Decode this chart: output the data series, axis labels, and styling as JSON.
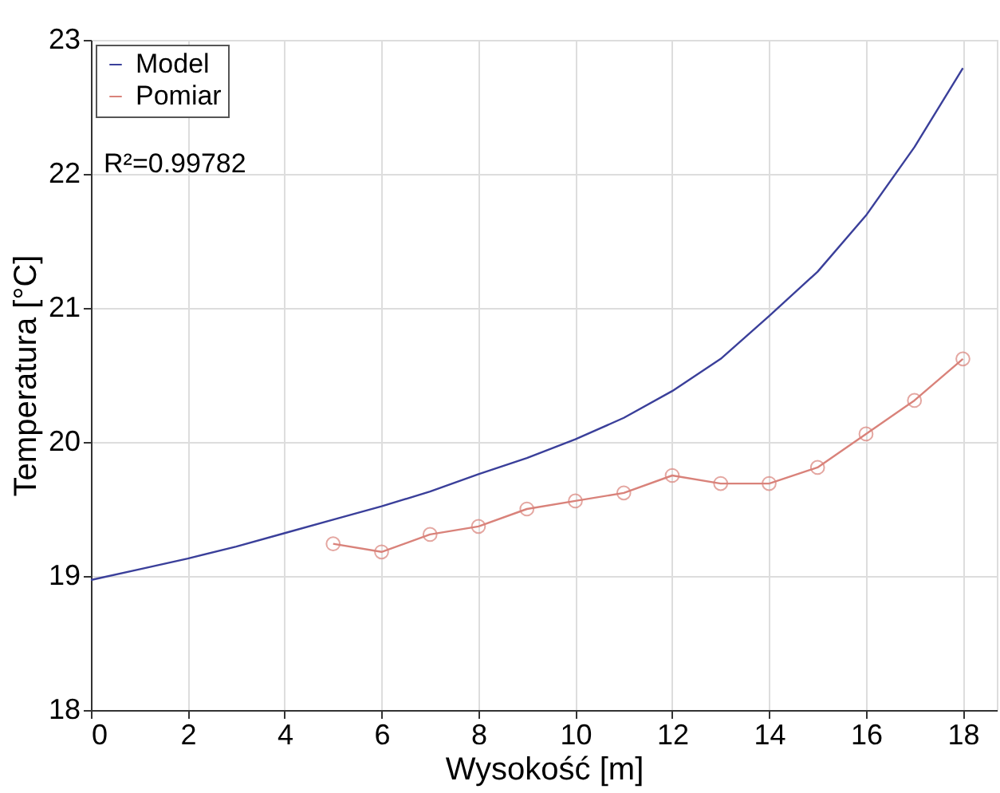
{
  "chart_data": {
    "type": "line",
    "xlabel": "Wysokość [m]",
    "ylabel": "Temperatura  [°C]",
    "xlim": [
      0,
      18.7
    ],
    "ylim": [
      18,
      23
    ],
    "xticks": [
      0,
      2,
      4,
      6,
      8,
      10,
      12,
      14,
      16,
      18
    ],
    "yticks": [
      18,
      19,
      20,
      21,
      22,
      23
    ],
    "grid": true,
    "legend": "top left",
    "annotations": [
      "R²=0.99782"
    ],
    "series": [
      {
        "name": "Model",
        "color": "#3a3f9a",
        "marker": "none",
        "x": [
          0,
          1,
          2,
          3,
          4,
          5,
          6,
          7,
          8,
          9,
          10,
          11,
          12,
          13,
          14,
          15,
          16,
          17,
          18
        ],
        "values": [
          18.97,
          19.05,
          19.13,
          19.22,
          19.32,
          19.42,
          19.52,
          19.63,
          19.76,
          19.88,
          20.02,
          20.18,
          20.38,
          20.62,
          20.94,
          21.27,
          21.69,
          22.2,
          22.79
        ]
      },
      {
        "name": "Pomiar",
        "color": "#d9827a",
        "marker": "circle",
        "x": [
          5,
          6,
          7,
          8,
          9,
          10,
          11,
          12,
          13,
          14,
          15,
          16,
          17,
          18
        ],
        "values": [
          19.24,
          19.18,
          19.31,
          19.37,
          19.5,
          19.56,
          19.62,
          19.75,
          19.69,
          19.69,
          19.81,
          20.06,
          20.31,
          20.62
        ]
      }
    ]
  }
}
